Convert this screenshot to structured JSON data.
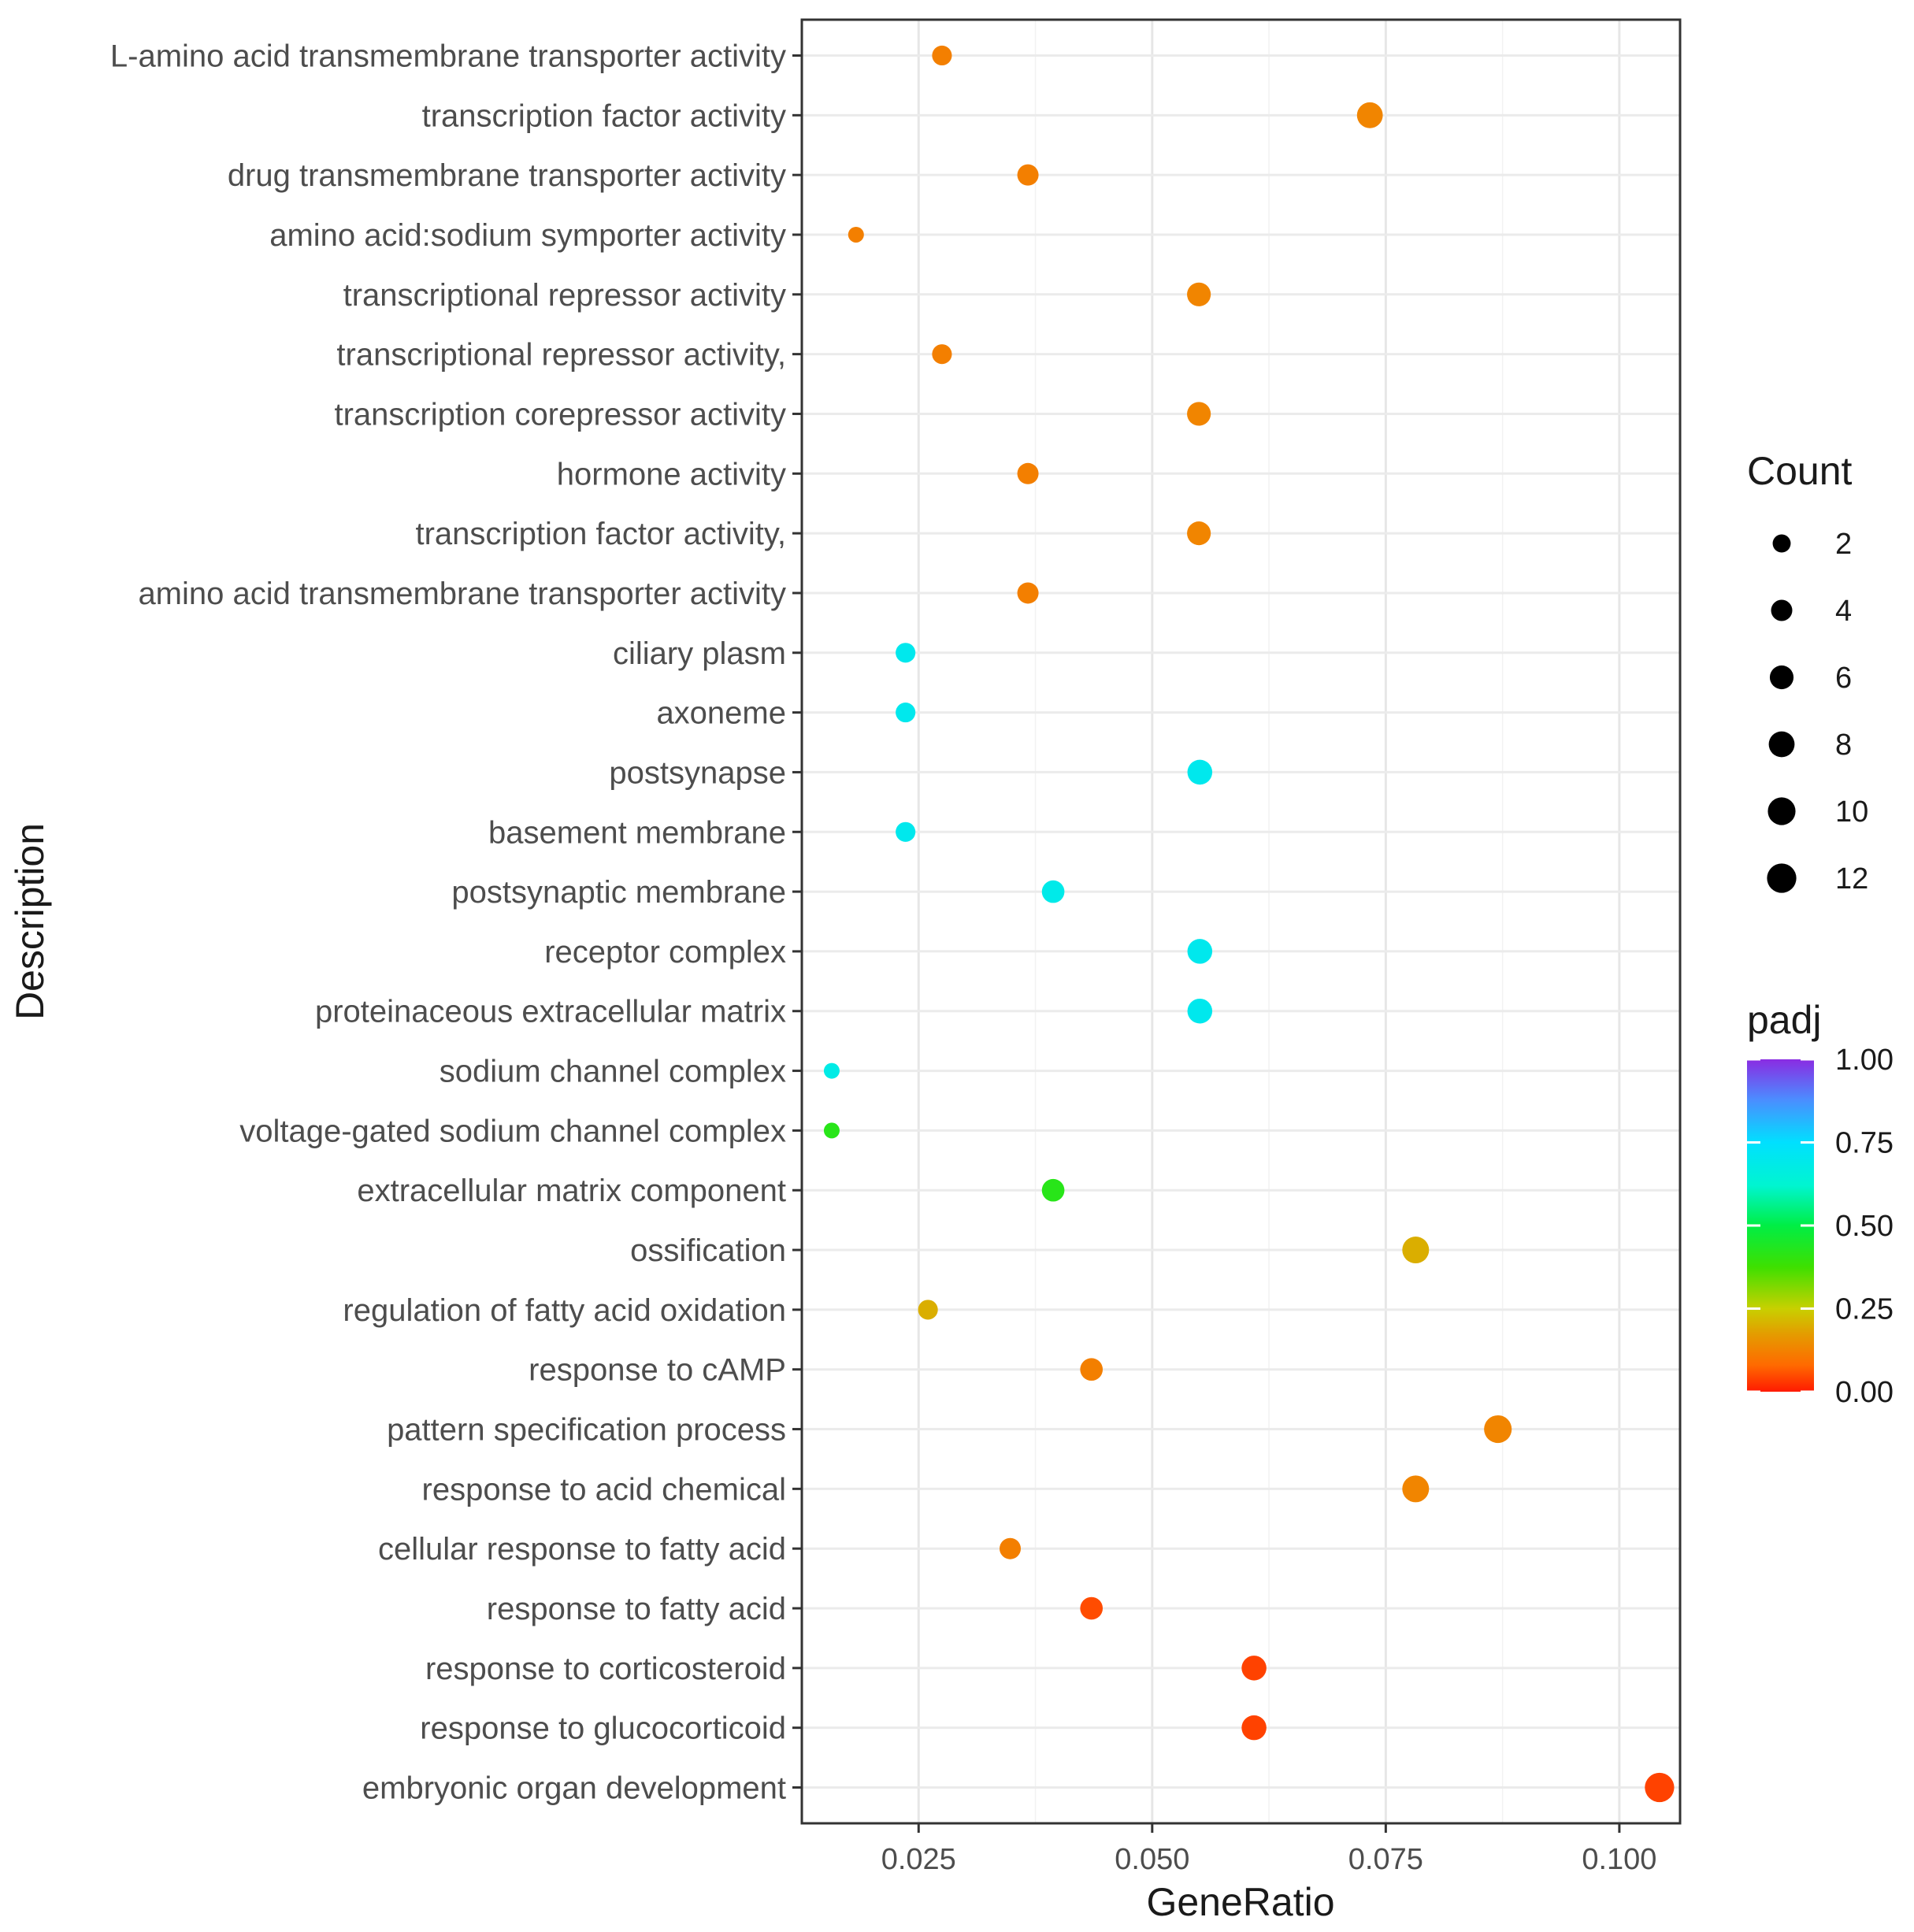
{
  "chart_data": {
    "type": "scatter",
    "title": "",
    "xlabel": "GeneRatio",
    "ylabel": "Description",
    "xlim": [
      0.0125,
      0.1065
    ],
    "xticks": [
      0.025,
      0.05,
      0.075,
      0.1
    ],
    "xtick_labels": [
      "0.025",
      "0.050",
      "0.075",
      "0.100"
    ],
    "grid": true,
    "size_legend": {
      "title": "Count",
      "values": [
        2,
        4,
        6,
        8,
        10,
        12
      ],
      "labels": [
        "2",
        "4",
        "6",
        "8",
        "10",
        "12"
      ]
    },
    "color_legend": {
      "title": "padj",
      "range": [
        0,
        1
      ],
      "ticks": [
        1.0,
        0.75,
        0.5,
        0.25,
        0.0
      ],
      "labels": [
        "1.00",
        "0.75",
        "0.50",
        "0.25",
        "0.00"
      ]
    },
    "points": [
      {
        "label": "L-amino acid transmembrane transporter activity",
        "gene_ratio": 0.0275,
        "count": 3,
        "padj": 0.12
      },
      {
        "label": "transcription factor activity",
        "gene_ratio": 0.0733,
        "count": 8,
        "padj": 0.13
      },
      {
        "label": "drug transmembrane transporter activity",
        "gene_ratio": 0.0367,
        "count": 4,
        "padj": 0.12
      },
      {
        "label": "amino acid:sodium symporter activity",
        "gene_ratio": 0.0183,
        "count": 1,
        "padj": 0.12
      },
      {
        "label": "transcriptional repressor activity",
        "gene_ratio": 0.055,
        "count": 6,
        "padj": 0.13
      },
      {
        "label": "transcriptional repressor activity,",
        "gene_ratio": 0.0275,
        "count": 3,
        "padj": 0.12
      },
      {
        "label": "transcription corepressor activity",
        "gene_ratio": 0.055,
        "count": 6,
        "padj": 0.13
      },
      {
        "label": "hormone activity",
        "gene_ratio": 0.0367,
        "count": 4,
        "padj": 0.12
      },
      {
        "label": "transcription factor activity,",
        "gene_ratio": 0.055,
        "count": 6,
        "padj": 0.13
      },
      {
        "label": "amino acid transmembrane transporter activity",
        "gene_ratio": 0.0367,
        "count": 4,
        "padj": 0.12
      },
      {
        "label": "ciliary plasm",
        "gene_ratio": 0.0236,
        "count": 3,
        "padj": 0.7
      },
      {
        "label": "axoneme",
        "gene_ratio": 0.0236,
        "count": 3,
        "padj": 0.7
      },
      {
        "label": "postsynapse",
        "gene_ratio": 0.0551,
        "count": 7,
        "padj": 0.7
      },
      {
        "label": "basement membrane",
        "gene_ratio": 0.0236,
        "count": 3,
        "padj": 0.7
      },
      {
        "label": "postsynaptic membrane",
        "gene_ratio": 0.0394,
        "count": 5,
        "padj": 0.69
      },
      {
        "label": "receptor complex",
        "gene_ratio": 0.0551,
        "count": 7,
        "padj": 0.7
      },
      {
        "label": "proteinaceous extracellular matrix",
        "gene_ratio": 0.0551,
        "count": 7,
        "padj": 0.7
      },
      {
        "label": "sodium channel complex",
        "gene_ratio": 0.0157,
        "count": 1,
        "padj": 0.68
      },
      {
        "label": "voltage-gated sodium channel complex",
        "gene_ratio": 0.0157,
        "count": 1,
        "padj": 0.42
      },
      {
        "label": "extracellular matrix component",
        "gene_ratio": 0.0394,
        "count": 5,
        "padj": 0.42
      },
      {
        "label": "ossification",
        "gene_ratio": 0.0782,
        "count": 9,
        "padj": 0.2
      },
      {
        "label": "regulation of fatty acid oxidation",
        "gene_ratio": 0.026,
        "count": 3,
        "padj": 0.2
      },
      {
        "label": "response to cAMP",
        "gene_ratio": 0.0435,
        "count": 5,
        "padj": 0.12
      },
      {
        "label": "pattern specification process",
        "gene_ratio": 0.087,
        "count": 10,
        "padj": 0.13
      },
      {
        "label": "response to acid chemical",
        "gene_ratio": 0.0782,
        "count": 9,
        "padj": 0.13
      },
      {
        "label": "cellular response to fatty acid",
        "gene_ratio": 0.0348,
        "count": 4,
        "padj": 0.12
      },
      {
        "label": "response to fatty acid",
        "gene_ratio": 0.0435,
        "count": 5,
        "padj": 0.05
      },
      {
        "label": "response to corticosteroid",
        "gene_ratio": 0.0609,
        "count": 7,
        "padj": 0.04
      },
      {
        "label": "response to glucocorticoid",
        "gene_ratio": 0.0609,
        "count": 7,
        "padj": 0.04
      },
      {
        "label": "embryonic organ development",
        "gene_ratio": 0.1043,
        "count": 12,
        "padj": 0.04
      }
    ]
  }
}
